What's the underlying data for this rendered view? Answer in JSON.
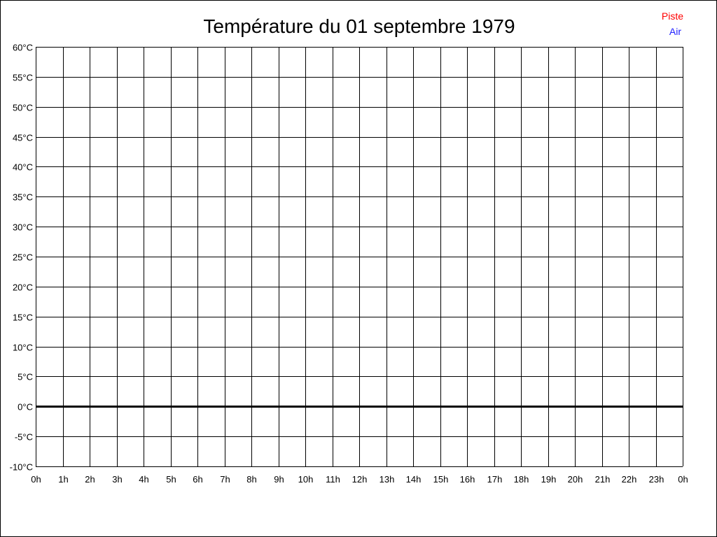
{
  "chart_data": {
    "type": "line",
    "title": "Température du 01 septembre 1979",
    "xlabel": "",
    "ylabel": "",
    "x_ticks": [
      "0h",
      "1h",
      "2h",
      "3h",
      "4h",
      "5h",
      "6h",
      "7h",
      "8h",
      "9h",
      "10h",
      "11h",
      "12h",
      "13h",
      "14h",
      "15h",
      "16h",
      "17h",
      "18h",
      "19h",
      "20h",
      "21h",
      "22h",
      "23h",
      "0h"
    ],
    "y_ticks": [
      60,
      55,
      50,
      45,
      40,
      35,
      30,
      25,
      20,
      15,
      10,
      5,
      0,
      -5,
      -10
    ],
    "y_unit": "°C",
    "ylim": [
      -10,
      60
    ],
    "xlim": [
      0,
      24
    ],
    "grid": true,
    "zero_line_emphasized": true,
    "legend_position": "top-right",
    "series": [
      {
        "name": "Piste",
        "color": "#ff0000",
        "values": []
      },
      {
        "name": "Air",
        "color": "#2020ff",
        "values": []
      }
    ]
  }
}
